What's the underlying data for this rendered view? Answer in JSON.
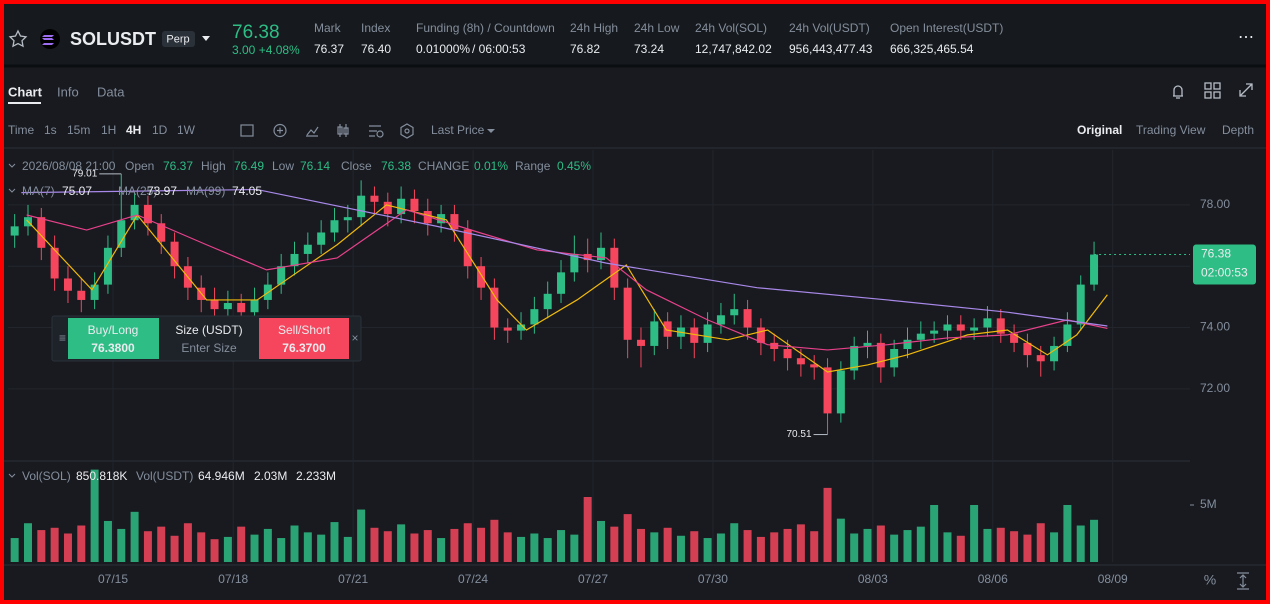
{
  "header": {
    "symbol": "SOLUSDT",
    "badge": "Perp",
    "price": "76.38",
    "change": "3.00 +4.08%",
    "stats": [
      {
        "label": "Mark",
        "value": "76.37"
      },
      {
        "label": "Index",
        "value": "76.40"
      },
      {
        "label": "24h High",
        "value": "76.82"
      },
      {
        "label": "24h Low",
        "value": "73.24"
      },
      {
        "label": "24h Vol(SOL)",
        "value": "12,747,842.02"
      },
      {
        "label": "24h Vol(USDT)",
        "value": "956,443,477.43"
      },
      {
        "label": "Open Interest(USDT)",
        "value": "666,325,465.54"
      }
    ],
    "funding": {
      "label": "Funding (8h) / Countdown",
      "rate": "0.01000%",
      "countdown": "/ 06:00:53"
    }
  },
  "tabs": [
    "Chart",
    "Info",
    "Data"
  ],
  "intervals": [
    "Time",
    "1s",
    "15m",
    "1H",
    "4H",
    "1D",
    "1W"
  ],
  "price_type": "Last Price",
  "views": [
    "Original",
    "Trading View",
    "Depth"
  ],
  "legend": {
    "datetime": "2026/08/08 21:00",
    "items": [
      {
        "label": "Open",
        "value": "76.37"
      },
      {
        "label": "High",
        "value": "76.49"
      },
      {
        "label": "Low",
        "value": "76.14"
      },
      {
        "label": "Close",
        "value": "76.38"
      },
      {
        "label": "CHANGE",
        "value": "0.01%"
      },
      {
        "label": "Range",
        "value": "0.45%"
      }
    ]
  },
  "ma_legend": [
    {
      "label": "MA(7)",
      "value": "75.07"
    },
    {
      "label": "MA(25)",
      "value": "73.97"
    },
    {
      "label": "MA(99)",
      "value": "74.05"
    }
  ],
  "vol_legend": [
    {
      "label": "Vol(SOL)",
      "value": "850.818K"
    },
    {
      "label": "Vol(USDT)",
      "value": "64.946M"
    },
    {
      "label": "",
      "value": "2.03M"
    },
    {
      "label": "",
      "value": "2.233M"
    }
  ],
  "order": {
    "buy_label": "Buy/Long",
    "buy_price": "76.3800",
    "size_label": "Size (USDT)",
    "size_placeholder": "Enter Size",
    "sell_label": "Sell/Short",
    "sell_price": "76.3700"
  },
  "chart_data": {
    "type": "candlestick",
    "up_color": "#2ebd85",
    "down_color": "#f6465d",
    "countdown": "02:00:53",
    "open": [
      77.0,
      77.3,
      77.6,
      76.6,
      75.6,
      75.2,
      74.9,
      75.4,
      76.6,
      77.5,
      78.0,
      77.4,
      76.8,
      76.0,
      75.3,
      74.9,
      74.6,
      74.8,
      74.5,
      74.9,
      75.4,
      76.0,
      76.4,
      76.7,
      77.1,
      77.5,
      77.6,
      78.3,
      78.1,
      77.7,
      78.2,
      77.8,
      77.4,
      77.7,
      77.2,
      76.0,
      75.3,
      74.0,
      73.9,
      74.1,
      74.6,
      75.1,
      75.8,
      76.4,
      76.2,
      76.6,
      75.3,
      73.6,
      73.4,
      74.2,
      73.7,
      74.0,
      73.5,
      74.1,
      74.4,
      74.6,
      74.0,
      73.5,
      73.3,
      73.0,
      72.8,
      72.7,
      71.2,
      72.6,
      73.4,
      73.5,
      72.7,
      73.3,
      73.6,
      73.8,
      73.9,
      74.1,
      73.9,
      74.0,
      74.3,
      73.8,
      73.5,
      73.1,
      72.9,
      73.4,
      74.1,
      75.4
    ],
    "high": [
      77.7,
      78.0,
      77.9,
      77.0,
      76.0,
      75.6,
      75.8,
      77.0,
      79.01,
      78.4,
      78.3,
      77.7,
      77.1,
      76.3,
      75.7,
      75.3,
      75.2,
      75.1,
      75.3,
      75.8,
      76.4,
      76.8,
      77.1,
      77.5,
      77.9,
      78.0,
      78.8,
      78.6,
      78.4,
      78.6,
      78.5,
      78.2,
      78.0,
      78.0,
      77.5,
      76.3,
      75.6,
      74.3,
      74.5,
      75.0,
      75.5,
      76.2,
      77.0,
      76.9,
      77.1,
      76.9,
      75.6,
      74.0,
      74.6,
      74.5,
      74.4,
      74.3,
      74.5,
      74.8,
      75.1,
      74.9,
      74.3,
      73.8,
      73.6,
      73.3,
      73.1,
      73.0,
      72.9,
      73.7,
      73.9,
      73.8,
      73.6,
      74.0,
      74.2,
      74.2,
      74.4,
      74.4,
      74.3,
      74.7,
      74.6,
      74.1,
      73.8,
      73.4,
      73.7,
      74.5,
      75.7,
      76.8
    ],
    "low": [
      76.6,
      77.0,
      76.2,
      75.2,
      74.8,
      74.5,
      74.6,
      75.1,
      76.3,
      77.2,
      77.0,
      76.4,
      75.6,
      74.9,
      74.5,
      74.2,
      74.3,
      74.1,
      74.2,
      74.6,
      75.1,
      75.7,
      76.1,
      76.4,
      76.8,
      77.1,
      77.3,
      77.7,
      77.3,
      77.4,
      77.4,
      77.0,
      77.1,
      76.8,
      75.6,
      74.9,
      73.6,
      73.5,
      73.6,
      73.8,
      74.3,
      74.8,
      75.5,
      75.8,
      75.9,
      74.9,
      73.0,
      72.7,
      73.1,
      73.3,
      73.3,
      73.0,
      73.2,
      73.8,
      74.1,
      73.6,
      73.1,
      72.9,
      72.6,
      72.4,
      72.3,
      70.51,
      70.9,
      72.3,
      73.0,
      72.2,
      72.4,
      73.0,
      73.3,
      73.5,
      73.6,
      73.6,
      73.6,
      73.7,
      73.5,
      73.2,
      72.7,
      72.4,
      72.6,
      73.2,
      73.9,
      75.2
    ],
    "close": [
      77.3,
      77.6,
      76.6,
      75.6,
      75.2,
      74.9,
      75.4,
      76.6,
      77.5,
      78.0,
      77.4,
      76.8,
      76.0,
      75.3,
      74.9,
      74.6,
      74.8,
      74.5,
      74.9,
      75.4,
      76.0,
      76.4,
      76.7,
      77.1,
      77.5,
      77.6,
      78.3,
      78.1,
      77.7,
      78.2,
      77.8,
      77.4,
      77.7,
      77.2,
      76.0,
      75.3,
      74.0,
      73.9,
      74.1,
      74.6,
      75.1,
      75.8,
      76.4,
      76.2,
      76.6,
      75.3,
      73.6,
      73.4,
      74.2,
      73.7,
      74.0,
      73.5,
      74.1,
      74.4,
      74.6,
      74.0,
      73.5,
      73.3,
      73.0,
      72.8,
      72.7,
      71.2,
      72.6,
      73.4,
      73.5,
      72.7,
      73.3,
      73.6,
      73.8,
      73.9,
      74.1,
      73.9,
      74.0,
      74.3,
      73.8,
      73.5,
      73.1,
      72.9,
      73.4,
      74.1,
      75.4,
      76.38
    ],
    "ma": [
      {
        "name": "MA(7)",
        "color": "#f0b90b",
        "x": [
          0.9,
          5.8,
          9.2,
          14.4,
          18.2,
          24.2,
          27.9,
          32.4,
          36.2,
          38.4,
          42.2,
          45.9,
          48.9,
          53.5,
          56.5,
          61.0,
          64.0,
          67.0,
          71.5,
          74.5,
          77.5,
          79.7,
          82
        ],
        "values": [
          77.51,
          75.23,
          77.67,
          74.9,
          74.9,
          76.7,
          78.0,
          77.51,
          74.9,
          73.92,
          74.9,
          76.04,
          73.92,
          73.6,
          73.92,
          72.55,
          72.78,
          73.11,
          73.76,
          73.92,
          73.11,
          73.76,
          75.07
        ]
      },
      {
        "name": "MA(25)",
        "color": "#e8418a",
        "x": [
          0.9,
          5.4,
          9.2,
          14.4,
          18.9,
          24.2,
          29.4,
          34.7,
          39.2,
          44.4,
          47.4,
          52.0,
          56.5,
          61.0,
          65.5,
          70.0,
          74.5,
          79.0,
          82
        ],
        "values": [
          77.67,
          77.18,
          77.67,
          76.7,
          75.88,
          76.27,
          77.84,
          77.12,
          76.53,
          76.27,
          75.23,
          74.25,
          73.44,
          73.27,
          73.44,
          73.66,
          73.76,
          74.25,
          73.97
        ]
      },
      {
        "name": "MA(99)",
        "color": "#a888e8",
        "x": [
          0.5,
          18.2,
          31.7,
          44.4,
          55.7,
          65.5,
          74.5,
          82
        ],
        "values": [
          78.4,
          78.5,
          77.3,
          76.1,
          75.3,
          74.9,
          74.5,
          74.05
        ]
      }
    ],
    "xlim": [
      0,
      88.7
    ],
    "xticks": [
      {
        "value": 7.88,
        "label": "07/15"
      },
      {
        "value": 16.9,
        "label": "07/18"
      },
      {
        "value": 25.9,
        "label": "07/21"
      },
      {
        "value": 34.9,
        "label": "07/24"
      },
      {
        "value": 43.9,
        "label": "07/27"
      },
      {
        "value": 52.9,
        "label": "07/30"
      },
      {
        "value": 64.9,
        "label": "08/03"
      },
      {
        "value": 73.9,
        "label": "08/06"
      },
      {
        "value": 82.9,
        "label": "08/09"
      }
    ],
    "ylim": [
      69.68,
      79.79
    ],
    "yticks": [
      {
        "value": 72,
        "label": "72.00"
      },
      {
        "value": 74,
        "label": "74.00"
      },
      {
        "value": 76,
        "label": "76.00"
      },
      {
        "value": 78,
        "label": "78.00"
      }
    ],
    "grid": true,
    "volume": {
      "ylim": [
        0,
        8.77
      ],
      "yticks": [
        {
          "value": 5,
          "label": "5M"
        }
      ],
      "values": [
        2.1,
        3.4,
        2.8,
        3.0,
        2.5,
        3.2,
        8.1,
        3.6,
        2.9,
        4.4,
        2.7,
        3.1,
        2.3,
        3.4,
        2.6,
        2.0,
        2.2,
        3.1,
        2.4,
        2.9,
        2.1,
        3.2,
        2.6,
        2.4,
        3.5,
        2.2,
        4.6,
        3.0,
        2.7,
        3.3,
        2.5,
        2.8,
        2.1,
        2.9,
        3.4,
        3.0,
        3.7,
        2.6,
        2.2,
        2.5,
        2.1,
        2.8,
        2.4,
        5.7,
        3.6,
        3.1,
        4.2,
        2.9,
        2.6,
        3.0,
        2.3,
        2.7,
        2.1,
        2.5,
        3.4,
        2.8,
        2.2,
        2.6,
        2.9,
        3.3,
        2.7,
        6.5,
        3.8,
        2.5,
        2.9,
        3.2,
        2.4,
        2.8,
        3.1,
        5.0,
        2.6,
        2.3,
        5.0,
        2.9,
        3.0,
        2.7,
        2.4,
        3.4,
        2.6,
        5.0,
        3.2,
        3.7
      ]
    }
  }
}
